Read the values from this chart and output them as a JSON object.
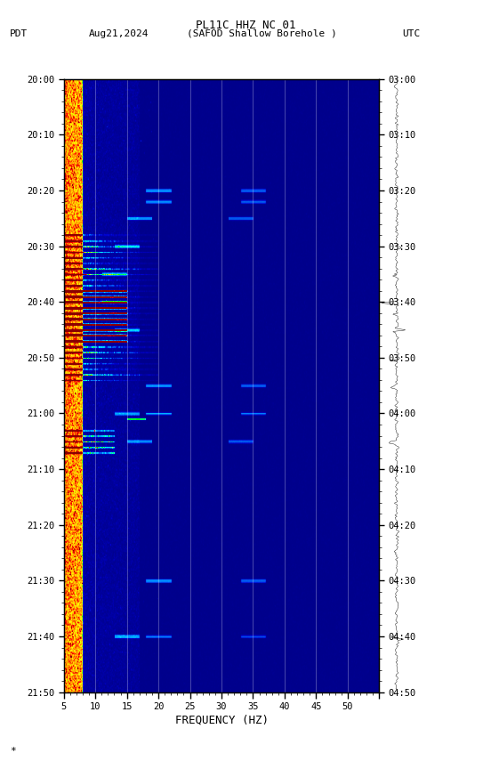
{
  "title_line1": "PL11C HHZ NC 01",
  "title_line2": "PDT   Aug21,2024     (SAFOD Shallow Borehole )                UTC",
  "xlabel": "FREQUENCY (HZ)",
  "ylabel_left": "PDT",
  "ylabel_right": "UTC",
  "freq_min": 0,
  "freq_max": 50,
  "time_start_pdt": "20:00",
  "time_end_pdt": "21:50",
  "time_start_utc": "03:00",
  "time_end_utc": "04:50",
  "ytick_pdt": [
    "20:00",
    "20:10",
    "20:20",
    "20:30",
    "20:40",
    "20:50",
    "21:00",
    "21:10",
    "21:20",
    "21:30",
    "21:40",
    "21:50"
  ],
  "ytick_utc": [
    "03:00",
    "03:10",
    "03:20",
    "03:30",
    "03:40",
    "03:50",
    "04:00",
    "04:10",
    "04:20",
    "04:30",
    "04:40",
    "04:50"
  ],
  "grid_freqs": [
    5,
    10,
    15,
    20,
    25,
    30,
    35,
    40,
    45
  ],
  "background_color": "#ffffff",
  "fig_width": 5.52,
  "fig_height": 8.64
}
